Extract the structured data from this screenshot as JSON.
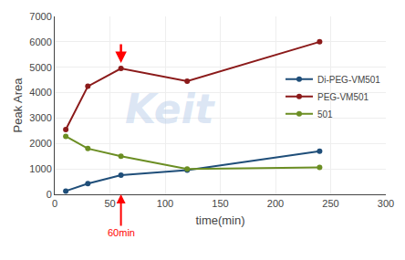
{
  "chart_data": {
    "type": "line",
    "xlabel": "time(min)",
    "ylabel": "Peak Area",
    "series": [
      {
        "name": "Di-PEG-VM501",
        "color": "#1F4E79",
        "marker": "circle",
        "x": [
          10,
          30,
          60,
          120,
          240
        ],
        "values": [
          130,
          420,
          750,
          950,
          1700
        ]
      },
      {
        "name": "PEG-VM501",
        "color": "#8B1A1A",
        "marker": "circle",
        "x": [
          10,
          30,
          60,
          120,
          240
        ],
        "values": [
          2550,
          4250,
          4950,
          4450,
          6000
        ]
      },
      {
        "name": "501",
        "color": "#6B8E23",
        "marker": "circle",
        "x": [
          10,
          30,
          60,
          120,
          240
        ],
        "values": [
          2280,
          1800,
          1500,
          1000,
          1060
        ]
      }
    ],
    "xlim": [
      0,
      300
    ],
    "xticks": [
      0,
      50,
      100,
      150,
      200,
      250,
      300
    ],
    "ylim": [
      0,
      7000
    ],
    "yticks": [
      0,
      1000,
      2000,
      3000,
      4000,
      5000,
      6000,
      7000
    ],
    "grid": true,
    "legend": "right",
    "annotations": [
      {
        "text": "60min",
        "x": 60,
        "color": "red"
      },
      {
        "text": "Keit"
      }
    ]
  }
}
